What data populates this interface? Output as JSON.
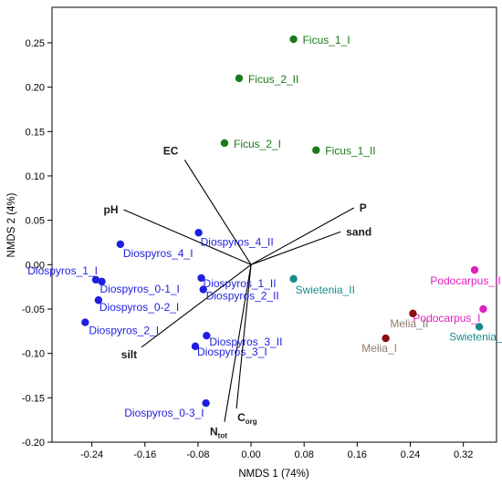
{
  "chart_data": {
    "type": "scatter",
    "xlabel": "NMDS 1 (74%)",
    "ylabel": "NMDS 2 (4%)",
    "xlim": [
      -0.3,
      0.37
    ],
    "ylim": [
      -0.2,
      0.29
    ],
    "xticks": [
      -0.24,
      -0.16,
      -0.08,
      0.0,
      0.08,
      0.16,
      0.24,
      0.32
    ],
    "xtick_labels": [
      "-0.24",
      "-0.16",
      "-0.08",
      "0.00",
      "0.08",
      "0.16",
      "0.24",
      "0.32"
    ],
    "yticks": [
      -0.2,
      -0.15,
      -0.1,
      -0.05,
      0.0,
      0.05,
      0.1,
      0.15,
      0.2,
      0.25
    ],
    "ytick_labels": [
      "-0.20",
      "-0.15",
      "-0.10",
      "-0.05",
      "0.00",
      "0.05",
      "0.10",
      "0.15",
      "0.20",
      "0.25"
    ],
    "colors": {
      "blue": "#1f1fe0",
      "green": "#1a7a1a",
      "teal": "#1a8a8a",
      "magenta": "#e020c0",
      "darkred": "#8b0f0f",
      "melia_label": "#8a7a6a",
      "vector": "#000000"
    },
    "points": [
      {
        "label": "Ficus_1_I",
        "x": 0.064,
        "y": 0.254,
        "color": "green"
      },
      {
        "label": "Ficus_2_II",
        "x": -0.018,
        "y": 0.21,
        "color": "green"
      },
      {
        "label": "Ficus_2_I",
        "x": -0.04,
        "y": 0.137,
        "color": "green"
      },
      {
        "label": "Ficus_1_II",
        "x": 0.098,
        "y": 0.129,
        "color": "green"
      },
      {
        "label": "Diospyros_4_II",
        "x": -0.079,
        "y": 0.036,
        "color": "blue"
      },
      {
        "label": "Diospyros_4_I",
        "x": -0.197,
        "y": 0.023,
        "color": "blue"
      },
      {
        "label": "Diospyros_1_I",
        "x": -0.234,
        "y": -0.017,
        "color": "blue"
      },
      {
        "label": "Diospyros_0-1_I",
        "x": -0.225,
        "y": -0.019,
        "color": "blue"
      },
      {
        "label": "Diospyros_0-2_I",
        "x": -0.23,
        "y": -0.04,
        "color": "blue"
      },
      {
        "label": "Diospyros_2_I",
        "x": -0.25,
        "y": -0.065,
        "color": "blue"
      },
      {
        "label": "Diospyros_1_II",
        "x": -0.075,
        "y": -0.015,
        "color": "blue"
      },
      {
        "label": "Diospyros_2_II",
        "x": -0.072,
        "y": -0.028,
        "color": "blue"
      },
      {
        "label": "Diospyros_3_II",
        "x": -0.067,
        "y": -0.08,
        "color": "blue"
      },
      {
        "label": "Diospyros_3_I",
        "x": -0.084,
        "y": -0.092,
        "color": "blue"
      },
      {
        "label": "Diospyros_0-3_I",
        "x": -0.068,
        "y": -0.156,
        "color": "blue"
      },
      {
        "label": "Swietenia_II",
        "x": 0.064,
        "y": -0.016,
        "color": "teal"
      },
      {
        "label": "Swietenia_I",
        "x": 0.344,
        "y": -0.07,
        "color": "teal"
      },
      {
        "label": "Podocarpus_II",
        "x": 0.337,
        "y": -0.006,
        "color": "magenta"
      },
      {
        "label": "Podocarpus_I",
        "x": 0.35,
        "y": -0.05,
        "color": "magenta"
      },
      {
        "label": "Melia_II",
        "x": 0.244,
        "y": -0.055,
        "color": "darkred"
      },
      {
        "label": "Melia_I",
        "x": 0.203,
        "y": -0.083,
        "color": "darkred"
      }
    ],
    "vectors": [
      {
        "label": "EC",
        "x": -0.1,
        "y": 0.118
      },
      {
        "label": "pH",
        "x": -0.192,
        "y": 0.062
      },
      {
        "label": "P",
        "x": 0.155,
        "y": 0.064
      },
      {
        "label": "sand",
        "x": 0.135,
        "y": 0.037
      },
      {
        "label": "silt",
        "x": -0.165,
        "y": -0.093
      },
      {
        "label": "N",
        "sub": "tot",
        "x": -0.04,
        "y": -0.177
      },
      {
        "label": "C",
        "sub": "org",
        "x": -0.022,
        "y": -0.162
      }
    ]
  }
}
